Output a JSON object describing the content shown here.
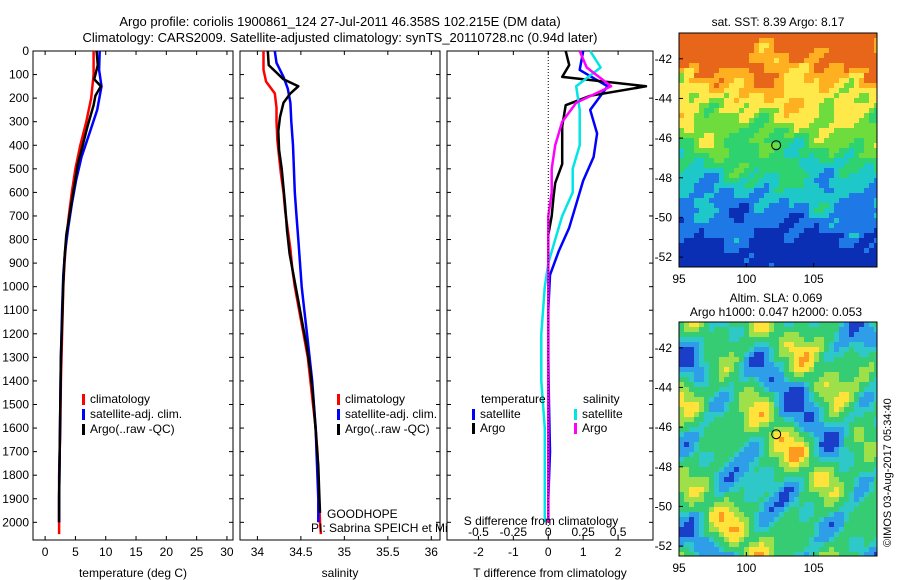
{
  "header": {
    "line1": "Argo profile: coriolis 1900861_124 27-Jul-2011 46.358S 102.215E (DM data)",
    "line2": "Climatology: CARS2009. Satellite-adjusted climatology: synTS_20110728.nc (0.94d later)"
  },
  "colors": {
    "climatology": "#ff0000",
    "satellite": "#0000ff",
    "argo": "#000000",
    "salinity_satellite": "#00e5e5",
    "salinity_argo": "#ff00ff"
  },
  "chart_data": [
    {
      "type": "line",
      "id": "temperature",
      "xlabel": "temperature (deg C)",
      "xlim": [
        -2,
        31
      ],
      "xticks": [
        0,
        5,
        10,
        15,
        20,
        25,
        30
      ],
      "ylim": [
        0,
        2075
      ],
      "yticks": [
        0,
        100,
        200,
        300,
        400,
        500,
        600,
        700,
        800,
        900,
        1000,
        1100,
        1200,
        1300,
        1400,
        1500,
        1600,
        1700,
        1800,
        1900,
        2000
      ],
      "yreversed": true,
      "legend": [
        "climatology",
        "satellite-adj. clim.",
        "Argo(..raw -QC)"
      ],
      "series": [
        {
          "name": "climatology",
          "color": "#ff0000",
          "points": [
            [
              8.0,
              0
            ],
            [
              8.0,
              100
            ],
            [
              7.6,
              200
            ],
            [
              6.8,
              300
            ],
            [
              5.8,
              400
            ],
            [
              5.0,
              500
            ],
            [
              4.4,
              600
            ],
            [
              3.9,
              700
            ],
            [
              3.5,
              800
            ],
            [
              3.2,
              900
            ],
            [
              3.0,
              1000
            ],
            [
              2.8,
              1200
            ],
            [
              2.6,
              1400
            ],
            [
              2.5,
              1600
            ],
            [
              2.3,
              1800
            ],
            [
              2.3,
              2000
            ],
            [
              2.3,
              2050
            ]
          ]
        },
        {
          "name": "satellite-adj. clim.",
          "color": "#0000ff",
          "points": [
            [
              9.0,
              0
            ],
            [
              8.9,
              80
            ],
            [
              9.3,
              150
            ],
            [
              8.6,
              250
            ],
            [
              7.3,
              350
            ],
            [
              6.0,
              450
            ],
            [
              5.1,
              550
            ],
            [
              4.4,
              650
            ],
            [
              3.8,
              750
            ],
            [
              3.3,
              850
            ],
            [
              3.0,
              950
            ],
            [
              2.8,
              1100
            ],
            [
              2.6,
              1300
            ],
            [
              2.5,
              1500
            ],
            [
              2.4,
              1700
            ],
            [
              2.3,
              1900
            ],
            [
              2.3,
              2000
            ]
          ]
        },
        {
          "name": "Argo(..raw -QC)",
          "color": "#000000",
          "points": [
            [
              8.5,
              0
            ],
            [
              8.7,
              60
            ],
            [
              8.1,
              120
            ],
            [
              9.2,
              150
            ],
            [
              8.3,
              190
            ],
            [
              8.0,
              230
            ],
            [
              7.0,
              320
            ],
            [
              6.2,
              400
            ],
            [
              5.4,
              480
            ],
            [
              4.9,
              560
            ],
            [
              4.5,
              620
            ],
            [
              4.0,
              700
            ],
            [
              3.5,
              780
            ],
            [
              3.2,
              880
            ],
            [
              3.0,
              980
            ],
            [
              2.8,
              1150
            ],
            [
              2.6,
              1300
            ],
            [
              2.5,
              1500
            ],
            [
              2.4,
              1700
            ],
            [
              2.3,
              1900
            ],
            [
              2.3,
              2000
            ]
          ]
        }
      ]
    },
    {
      "type": "line",
      "id": "salinity",
      "xlabel": "salinity",
      "xlim": [
        33.8,
        36.1
      ],
      "xticks": [
        34,
        34.5,
        35,
        35.5,
        36
      ],
      "ylim": [
        0,
        2075
      ],
      "yreversed": true,
      "legend": [
        "climatology",
        "satellite-adj. clim.",
        "Argo(..raw -QC)"
      ],
      "annotations": [
        "GOODHOPE",
        "PI: Sabrina SPEICH et Michel ARHAN"
      ],
      "series": [
        {
          "name": "climatology",
          "color": "#ff0000",
          "points": [
            [
              34.07,
              0
            ],
            [
              34.07,
              80
            ],
            [
              34.1,
              130
            ],
            [
              34.2,
              180
            ],
            [
              34.22,
              240
            ],
            [
              34.22,
              300
            ],
            [
              34.23,
              380
            ],
            [
              34.25,
              450
            ],
            [
              34.27,
              520
            ],
            [
              34.3,
              600
            ],
            [
              34.32,
              680
            ],
            [
              34.35,
              760
            ],
            [
              34.38,
              840
            ],
            [
              34.4,
              920
            ],
            [
              34.43,
              1000
            ],
            [
              34.48,
              1100
            ],
            [
              34.53,
              1200
            ],
            [
              34.58,
              1300
            ],
            [
              34.61,
              1400
            ],
            [
              34.64,
              1500
            ],
            [
              34.67,
              1600
            ],
            [
              34.69,
              1700
            ],
            [
              34.7,
              1800
            ],
            [
              34.71,
              1900
            ],
            [
              34.72,
              2000
            ],
            [
              34.73,
              2050
            ]
          ]
        },
        {
          "name": "satellite-adj. clim.",
          "color": "#0000ff",
          "points": [
            [
              34.2,
              0
            ],
            [
              34.22,
              50
            ],
            [
              34.3,
              110
            ],
            [
              34.35,
              160
            ],
            [
              34.38,
              220
            ],
            [
              34.39,
              300
            ],
            [
              34.41,
              400
            ],
            [
              34.42,
              500
            ],
            [
              34.43,
              600
            ],
            [
              34.45,
              700
            ],
            [
              34.47,
              800
            ],
            [
              34.49,
              900
            ],
            [
              34.51,
              1000
            ],
            [
              34.54,
              1100
            ],
            [
              34.57,
              1200
            ],
            [
              34.6,
              1300
            ],
            [
              34.63,
              1400
            ],
            [
              34.65,
              1500
            ],
            [
              34.67,
              1600
            ],
            [
              34.68,
              1700
            ],
            [
              34.69,
              1800
            ],
            [
              34.7,
              1900
            ],
            [
              34.7,
              2000
            ]
          ]
        },
        {
          "name": "Argo(..raw -QC)",
          "color": "#000000",
          "points": [
            [
              34.12,
              0
            ],
            [
              34.13,
              60
            ],
            [
              34.3,
              120
            ],
            [
              34.47,
              150
            ],
            [
              34.38,
              180
            ],
            [
              34.3,
              220
            ],
            [
              34.26,
              280
            ],
            [
              34.24,
              340
            ],
            [
              34.25,
              420
            ],
            [
              34.28,
              500
            ],
            [
              34.3,
              580
            ],
            [
              34.32,
              660
            ],
            [
              34.34,
              760
            ],
            [
              34.37,
              860
            ],
            [
              34.42,
              960
            ],
            [
              34.47,
              1060
            ],
            [
              34.52,
              1160
            ],
            [
              34.57,
              1260
            ],
            [
              34.61,
              1360
            ],
            [
              34.64,
              1460
            ],
            [
              34.66,
              1560
            ],
            [
              34.68,
              1660
            ],
            [
              34.7,
              1760
            ],
            [
              34.71,
              1860
            ],
            [
              34.72,
              1960
            ]
          ]
        }
      ]
    },
    {
      "type": "line",
      "id": "difference",
      "xlabel": "T difference from climatology",
      "xlabel_top": "S difference from climatology",
      "xlim": [
        -2.9,
        3.0
      ],
      "xticks": [
        -2,
        -1,
        0,
        1,
        2
      ],
      "xticklabels_s": [
        "-0.5",
        "-0.25",
        "0",
        "0.25",
        "0.5"
      ],
      "ylim": [
        0,
        2075
      ],
      "yreversed": true,
      "legend_headers": [
        "temperature",
        "salinity"
      ],
      "legend": [
        "satellite",
        "Argo",
        "satellite",
        "Argo"
      ],
      "series": [
        {
          "name": "temperature satellite",
          "color": "#0000ff",
          "points": [
            [
              1.0,
              0
            ],
            [
              0.9,
              80
            ],
            [
              1.7,
              150
            ],
            [
              1.2,
              250
            ],
            [
              1.4,
              350
            ],
            [
              1.3,
              450
            ],
            [
              1.0,
              550
            ],
            [
              0.8,
              650
            ],
            [
              0.6,
              750
            ],
            [
              0.3,
              850
            ],
            [
              0.05,
              950
            ],
            [
              0.0,
              1100
            ],
            [
              0.0,
              1300
            ],
            [
              0.02,
              1500
            ],
            [
              0.05,
              1700
            ],
            [
              0.0,
              1900
            ],
            [
              0.0,
              2000
            ]
          ]
        },
        {
          "name": "temperature Argo",
          "color": "#000000",
          "points": [
            [
              0.5,
              0
            ],
            [
              0.6,
              60
            ],
            [
              0.4,
              110
            ],
            [
              2.8,
              150
            ],
            [
              1.2,
              190
            ],
            [
              0.5,
              230
            ],
            [
              0.4,
              320
            ],
            [
              0.4,
              400
            ],
            [
              0.4,
              480
            ],
            [
              0.2,
              560
            ],
            [
              0.15,
              620
            ],
            [
              0.1,
              700
            ],
            [
              0.0,
              780
            ],
            [
              0.0,
              900
            ],
            [
              0.0,
              1000
            ],
            [
              0.0,
              1200
            ],
            [
              0.0,
              1400
            ],
            [
              0.0,
              1600
            ],
            [
              0.0,
              1800
            ],
            [
              0.0,
              2000
            ]
          ]
        },
        {
          "name": "salinity satellite",
          "color": "#00e5e5",
          "points": [
            [
              1.2,
              0
            ],
            [
              1.5,
              70
            ],
            [
              0.8,
              150
            ],
            [
              0.9,
              250
            ],
            [
              0.9,
              400
            ],
            [
              0.7,
              500
            ],
            [
              0.7,
              600
            ],
            [
              0.4,
              700
            ],
            [
              0.2,
              800
            ],
            [
              0.0,
              900
            ],
            [
              -0.1,
              1000
            ],
            [
              -0.2,
              1200
            ],
            [
              -0.2,
              1400
            ],
            [
              -0.1,
              1600
            ],
            [
              -0.1,
              1800
            ],
            [
              -0.1,
              2000
            ]
          ]
        },
        {
          "name": "salinity Argo",
          "color": "#ff00ff",
          "points": [
            [
              0.9,
              0
            ],
            [
              1.1,
              70
            ],
            [
              1.8,
              150
            ],
            [
              0.8,
              220
            ],
            [
              0.4,
              300
            ],
            [
              0.2,
              400
            ],
            [
              0.1,
              500
            ],
            [
              0.1,
              600
            ],
            [
              0.0,
              700
            ],
            [
              0.0,
              800
            ],
            [
              0.0,
              900
            ],
            [
              0.0,
              1000
            ],
            [
              0.0,
              1200
            ],
            [
              0.0,
              1400
            ],
            [
              0.0,
              1600
            ],
            [
              0.0,
              1800
            ],
            [
              0.0,
              2000
            ]
          ]
        }
      ]
    },
    {
      "type": "heatmap",
      "id": "sst_map",
      "title": "sat. SST: 8.39 Argo: 8.17",
      "xlim": [
        95,
        109.7
      ],
      "ylim": [
        -52.5,
        -40.7
      ],
      "xticks": [
        95,
        100,
        105
      ],
      "yticks": [
        -42,
        -44,
        -46,
        -48,
        -50,
        -52
      ],
      "marker": [
        102.215,
        -46.358
      ]
    },
    {
      "type": "heatmap",
      "id": "sla_map",
      "title_line1": "Altim. SLA: 0.069",
      "title_line2": "Argo h1000: 0.047 h2000: 0.053",
      "xlim": [
        95,
        109.7
      ],
      "ylim": [
        -52.5,
        -40.7
      ],
      "xticks": [
        95,
        100,
        105
      ],
      "yticks": [
        -42,
        -44,
        -46,
        -48,
        -50,
        -52
      ],
      "marker": [
        102.215,
        -46.358
      ]
    }
  ],
  "footer": {
    "credit": "©IMOS 03-Aug-2017 05:34:40"
  }
}
